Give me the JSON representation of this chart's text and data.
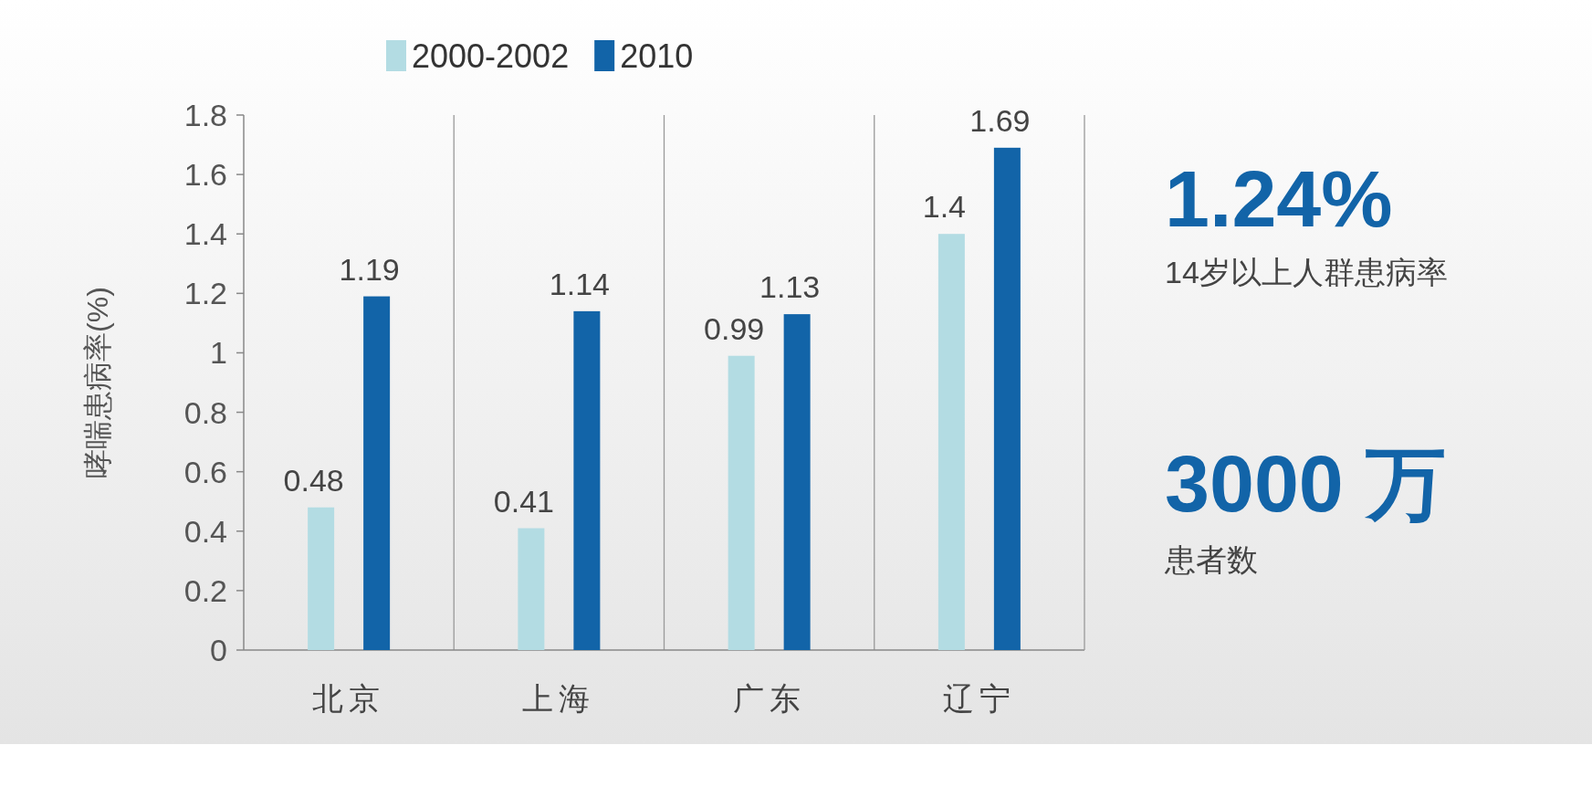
{
  "chart_data": {
    "type": "bar",
    "ylabel": "哮喘患病率(%)",
    "categories": [
      "北京",
      "上海",
      "广东",
      "辽宁"
    ],
    "series": [
      {
        "name": "2000-2002",
        "color": "#b3dce3",
        "values": [
          0.48,
          0.41,
          0.99,
          1.4
        ]
      },
      {
        "name": "2010",
        "color": "#1264a8",
        "values": [
          1.19,
          1.14,
          1.13,
          1.69
        ]
      }
    ],
    "ylim": [
      0,
      1.8
    ],
    "yticks": [
      0,
      0.2,
      0.4,
      0.6,
      0.8,
      1,
      1.2,
      1.4,
      1.6,
      1.8
    ],
    "grid": "x",
    "legend": "top",
    "data_labels": true,
    "annotations": [
      "1.24%",
      "14岁以上人群患病率",
      "3000 万",
      "患者数"
    ]
  }
}
